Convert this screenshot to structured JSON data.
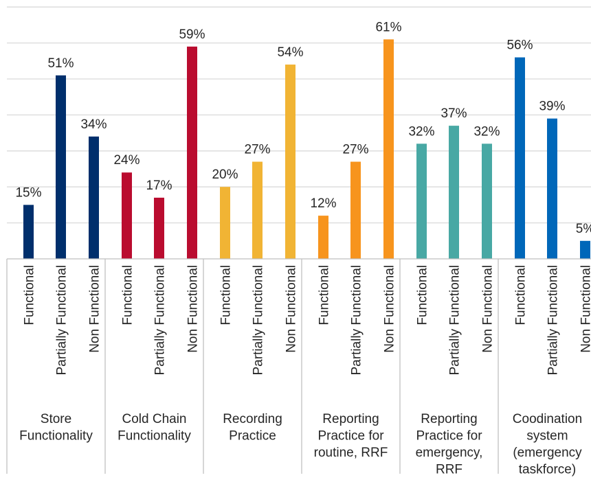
{
  "chart_data": {
    "type": "bar",
    "groups": [
      {
        "label_lines": [
          "Store",
          "Functionality"
        ],
        "color": "#002f6c",
        "bars": [
          {
            "category": "Functional",
            "value": 15
          },
          {
            "category": "Partially Functional",
            "value": 51
          },
          {
            "category": "Non Functional",
            "value": 34
          }
        ]
      },
      {
        "label_lines": [
          "Cold Chain",
          "Functionality"
        ],
        "color": "#ba0c2f",
        "bars": [
          {
            "category": "Functional",
            "value": 24
          },
          {
            "category": "Partially Functional",
            "value": 17
          },
          {
            "category": "Non Functional",
            "value": 59
          }
        ]
      },
      {
        "label_lines": [
          "Recording",
          "Practice"
        ],
        "color": "#f1b434",
        "bars": [
          {
            "category": "Functional",
            "value": 20
          },
          {
            "category": "Partially Functional",
            "value": 27
          },
          {
            "category": "Non Functional",
            "value": 54
          }
        ]
      },
      {
        "label_lines": [
          "Reporting",
          "Practice for",
          "routine, RRF"
        ],
        "color": "#f7941d",
        "bars": [
          {
            "category": "Functional",
            "value": 12
          },
          {
            "category": "Partially Functional",
            "value": 27
          },
          {
            "category": "Non Functional",
            "value": 61
          }
        ]
      },
      {
        "label_lines": [
          "Reporting",
          "Practice for",
          "emergency,",
          "RRF"
        ],
        "color": "#48a8a4",
        "bars": [
          {
            "category": "Functional",
            "value": 32
          },
          {
            "category": "Partially Functional",
            "value": 37
          },
          {
            "category": "Non Functional",
            "value": 32
          }
        ]
      },
      {
        "label_lines": [
          "Coodination",
          "system",
          "(emergency",
          "taskforce)"
        ],
        "color": "#0067b9",
        "bars": [
          {
            "category": "Functional",
            "value": 56
          },
          {
            "category": "Partially Functional",
            "value": 39
          },
          {
            "category": "Non Functional",
            "value": 5
          }
        ]
      }
    ],
    "value_suffix": "%",
    "ylim": [
      0,
      70
    ],
    "grid": true,
    "legend": "none",
    "title": "",
    "xlabel": "",
    "ylabel": ""
  }
}
